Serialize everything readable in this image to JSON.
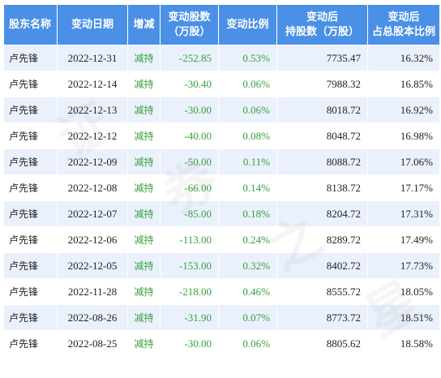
{
  "table": {
    "headers": {
      "holder": "股东名称",
      "date": "变动日期",
      "direction": "增减",
      "change_shares_l1": "变动股数",
      "change_shares_l2": "（万股）",
      "change_ratio": "变动比例",
      "after_holding_l1": "变动后",
      "after_holding_l2": "持股数（万股）",
      "after_pct_l1": "变动后",
      "after_pct_l2": "占总股本比例"
    },
    "rows": [
      {
        "holder": "卢先锋",
        "date": "2022-12-31",
        "direction": "减持",
        "change": "-252.85",
        "ratio": "0.53%",
        "after": "7735.47",
        "pct": "16.32%"
      },
      {
        "holder": "卢先锋",
        "date": "2022-12-14",
        "direction": "减持",
        "change": "-30.40",
        "ratio": "0.06%",
        "after": "7988.32",
        "pct": "16.85%"
      },
      {
        "holder": "卢先锋",
        "date": "2022-12-13",
        "direction": "减持",
        "change": "-30.00",
        "ratio": "0.06%",
        "after": "8018.72",
        "pct": "16.92%"
      },
      {
        "holder": "卢先锋",
        "date": "2022-12-12",
        "direction": "减持",
        "change": "-40.00",
        "ratio": "0.08%",
        "after": "8048.72",
        "pct": "16.98%"
      },
      {
        "holder": "卢先锋",
        "date": "2022-12-09",
        "direction": "减持",
        "change": "-50.00",
        "ratio": "0.11%",
        "after": "8088.72",
        "pct": "17.06%"
      },
      {
        "holder": "卢先锋",
        "date": "2022-12-08",
        "direction": "减持",
        "change": "-66.00",
        "ratio": "0.14%",
        "after": "8138.72",
        "pct": "17.17%"
      },
      {
        "holder": "卢先锋",
        "date": "2022-12-07",
        "direction": "减持",
        "change": "-85.00",
        "ratio": "0.18%",
        "after": "8204.72",
        "pct": "17.31%"
      },
      {
        "holder": "卢先锋",
        "date": "2022-12-06",
        "direction": "减持",
        "change": "-113.00",
        "ratio": "0.24%",
        "after": "8289.72",
        "pct": "17.49%"
      },
      {
        "holder": "卢先锋",
        "date": "2022-12-05",
        "direction": "减持",
        "change": "-153.00",
        "ratio": "0.32%",
        "after": "8402.72",
        "pct": "17.73%"
      },
      {
        "holder": "卢先锋",
        "date": "2022-11-28",
        "direction": "减持",
        "change": "-218.00",
        "ratio": "0.46%",
        "after": "8555.72",
        "pct": "18.05%"
      },
      {
        "holder": "卢先锋",
        "date": "2022-08-26",
        "direction": "减持",
        "change": "-31.90",
        "ratio": "0.07%",
        "after": "8773.72",
        "pct": "18.51%"
      },
      {
        "holder": "卢先锋",
        "date": "2022-08-25",
        "direction": "减持",
        "change": "-30.00",
        "ratio": "0.06%",
        "after": "8805.62",
        "pct": "18.58%"
      }
    ]
  },
  "watermark": [
    "证",
    "券",
    "之",
    "星"
  ],
  "colors": {
    "header_bg": "#4a90e6",
    "row_alt_bg": "#eaf1fc",
    "decrease_green": "#36a13c"
  }
}
